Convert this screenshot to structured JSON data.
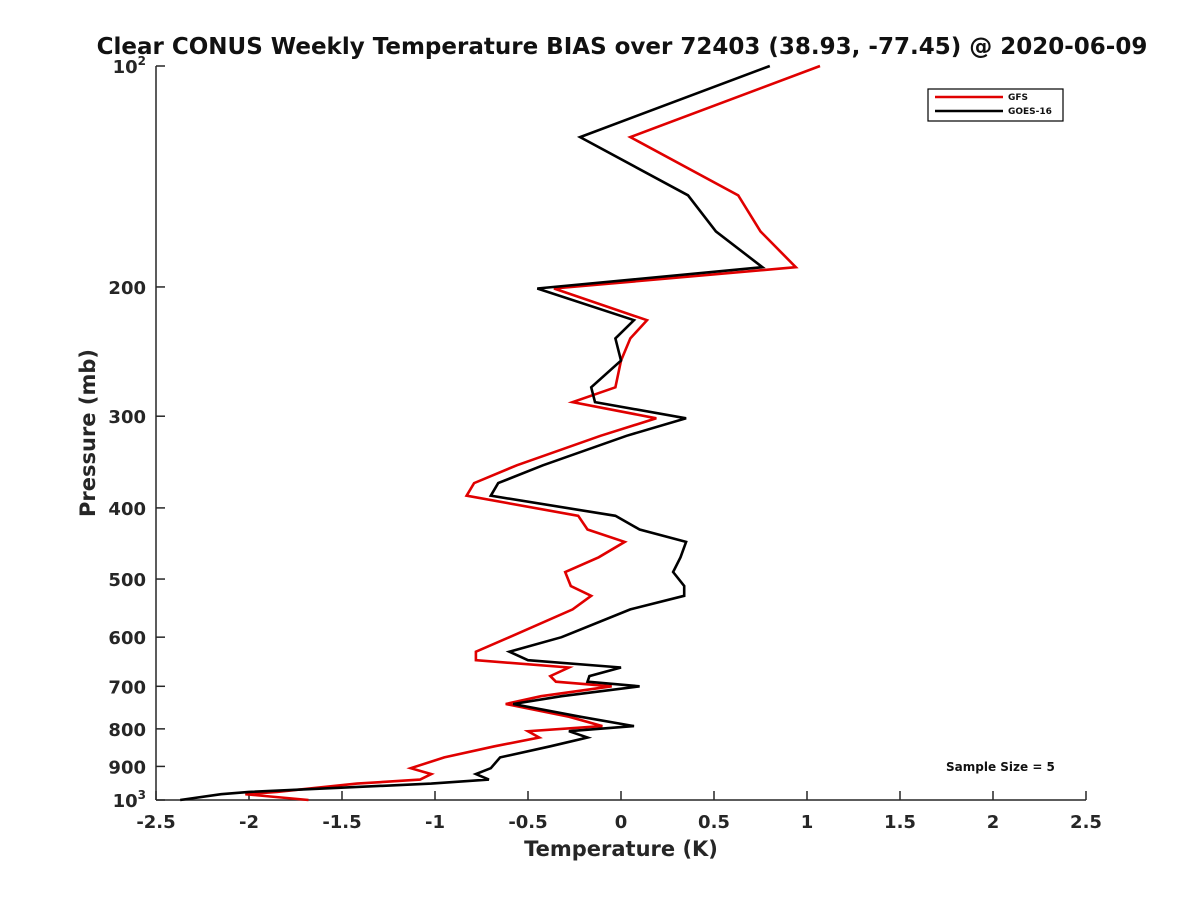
{
  "chart_data": {
    "type": "line",
    "title": "Clear CONUS Weekly Temperature BIAS over 72403 (38.93, -77.45) @ 2020-06-09",
    "xlabel": "Temperature (K)",
    "ylabel": "Pressure (mb)",
    "xlim": [
      -2.5,
      2.5
    ],
    "ylim": [
      1000,
      100
    ],
    "yscale": "log",
    "grid": false,
    "legend_position": "top-right",
    "x_ticks": [
      "-2.5",
      "-2",
      "-1.5",
      "-1",
      "-0.5",
      "0",
      "0.5",
      "1",
      "1.5",
      "2",
      "2.5"
    ],
    "x_tick_values": [
      -2.5,
      -2,
      -1.5,
      -1,
      -0.5,
      0,
      0.5,
      1,
      1.5,
      2,
      2.5
    ],
    "y_ticks": [
      {
        "value": 100,
        "base": "10",
        "exp": "2"
      },
      {
        "value": 200,
        "label": "200"
      },
      {
        "value": 300,
        "label": "300"
      },
      {
        "value": 400,
        "label": "400"
      },
      {
        "value": 500,
        "label": "500"
      },
      {
        "value": 600,
        "label": "600"
      },
      {
        "value": 700,
        "label": "700"
      },
      {
        "value": 800,
        "label": "800"
      },
      {
        "value": 900,
        "label": "900"
      },
      {
        "value": 1000,
        "base": "10",
        "exp": "3"
      }
    ],
    "annotation": "Sample Size = 5",
    "series": [
      {
        "name": "GFS",
        "color": "#e00000",
        "points": [
          [
            1.07,
            100
          ],
          [
            0.05,
            125
          ],
          [
            0.63,
            150
          ],
          [
            0.75,
            168
          ],
          [
            0.94,
            188
          ],
          [
            -0.36,
            201
          ],
          [
            0.14,
            222
          ],
          [
            0.05,
            235
          ],
          [
            0.0,
            252
          ],
          [
            -0.03,
            274
          ],
          [
            -0.26,
            287
          ],
          [
            0.19,
            302
          ],
          [
            -0.11,
            319
          ],
          [
            -0.56,
            350
          ],
          [
            -0.79,
            370
          ],
          [
            -0.83,
            385
          ],
          [
            -0.23,
            410
          ],
          [
            -0.18,
            428
          ],
          [
            0.02,
            445
          ],
          [
            -0.12,
            467
          ],
          [
            -0.3,
            489
          ],
          [
            -0.27,
            511
          ],
          [
            -0.16,
            527
          ],
          [
            -0.26,
            550
          ],
          [
            -0.6,
            600
          ],
          [
            -0.78,
            628
          ],
          [
            -0.78,
            645
          ],
          [
            -0.28,
            660
          ],
          [
            -0.38,
            678
          ],
          [
            -0.35,
            690
          ],
          [
            -0.05,
            700
          ],
          [
            -0.43,
            722
          ],
          [
            -0.62,
            740
          ],
          [
            -0.28,
            770
          ],
          [
            -0.1,
            793
          ],
          [
            -0.5,
            806
          ],
          [
            -0.44,
            822
          ],
          [
            -0.68,
            845
          ],
          [
            -0.95,
            875
          ],
          [
            -1.13,
            905
          ],
          [
            -1.02,
            922
          ],
          [
            -1.08,
            938
          ],
          [
            -1.42,
            950
          ],
          [
            -1.85,
            975
          ],
          [
            -2.02,
            982
          ],
          [
            -1.68,
            1000
          ]
        ]
      },
      {
        "name": "GOES-16",
        "color": "#000000",
        "points": [
          [
            0.8,
            100
          ],
          [
            -0.22,
            125
          ],
          [
            0.36,
            150
          ],
          [
            0.51,
            168
          ],
          [
            0.76,
            188
          ],
          [
            -0.45,
            201
          ],
          [
            0.07,
            222
          ],
          [
            -0.03,
            235
          ],
          [
            0.0,
            252
          ],
          [
            -0.16,
            274
          ],
          [
            -0.14,
            287
          ],
          [
            0.35,
            302
          ],
          [
            0.03,
            319
          ],
          [
            -0.42,
            350
          ],
          [
            -0.66,
            370
          ],
          [
            -0.7,
            385
          ],
          [
            -0.03,
            410
          ],
          [
            0.1,
            428
          ],
          [
            0.35,
            445
          ],
          [
            0.32,
            467
          ],
          [
            0.28,
            489
          ],
          [
            0.34,
            511
          ],
          [
            0.34,
            527
          ],
          [
            0.05,
            550
          ],
          [
            -0.32,
            600
          ],
          [
            -0.6,
            628
          ],
          [
            -0.5,
            645
          ],
          [
            0.0,
            660
          ],
          [
            -0.17,
            678
          ],
          [
            -0.18,
            690
          ],
          [
            0.1,
            700
          ],
          [
            -0.32,
            722
          ],
          [
            -0.58,
            740
          ],
          [
            -0.22,
            770
          ],
          [
            0.07,
            793
          ],
          [
            -0.28,
            806
          ],
          [
            -0.18,
            822
          ],
          [
            -0.38,
            845
          ],
          [
            -0.65,
            875
          ],
          [
            -0.7,
            905
          ],
          [
            -0.78,
            922
          ],
          [
            -0.71,
            938
          ],
          [
            -1.02,
            950
          ],
          [
            -2.0,
            975
          ],
          [
            -2.15,
            982
          ],
          [
            -2.37,
            1000
          ]
        ]
      }
    ]
  }
}
